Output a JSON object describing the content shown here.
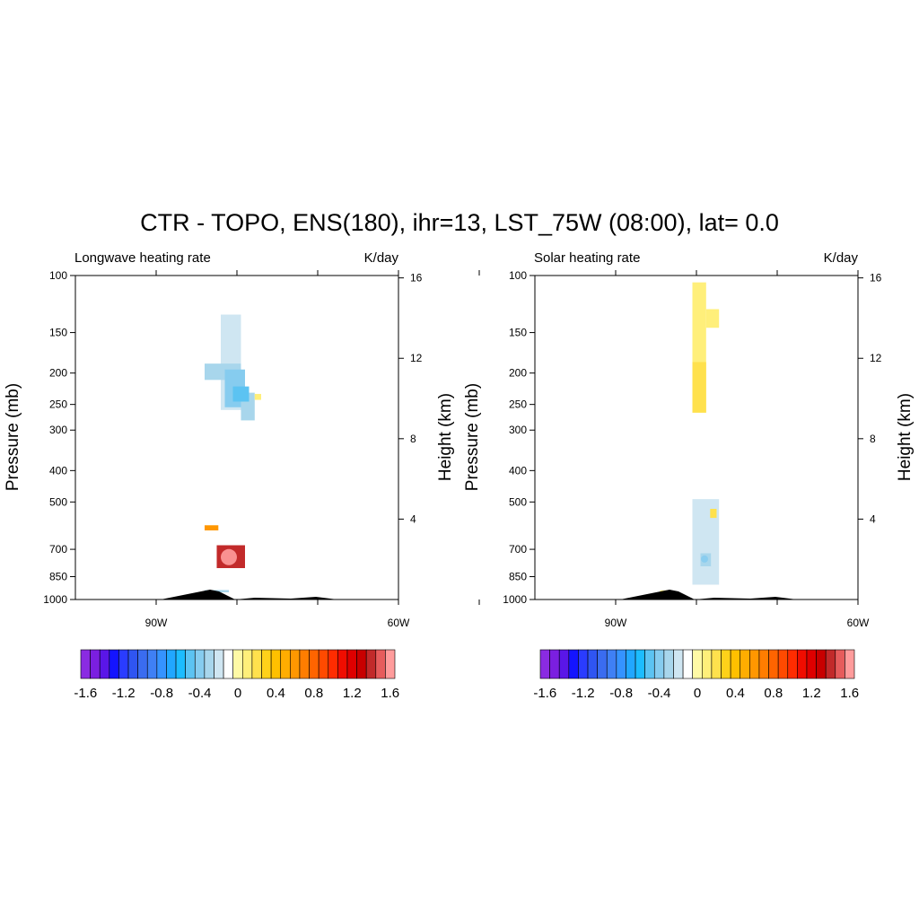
{
  "title": "CTR - TOPO, ENS(180), ihr=13, LST_75W (08:00), lat=  0.0",
  "colorbar": {
    "colors": [
      "#8a2be2",
      "#7b1fe0",
      "#5a16e8",
      "#1414ff",
      "#2a3cff",
      "#2f55f2",
      "#3a6cf0",
      "#3f80f5",
      "#3593ff",
      "#21a7ff",
      "#1cbcff",
      "#5cc3f2",
      "#86ccef",
      "#a8d6ec",
      "#cfe6f2",
      "#ffffff",
      "#fff9a6",
      "#ffef7a",
      "#ffe14d",
      "#ffd11a",
      "#ffc000",
      "#ffad00",
      "#ff9700",
      "#ff7d00",
      "#ff6400",
      "#ff4a00",
      "#ff2c00",
      "#f00d00",
      "#de0000",
      "#c80000",
      "#c22a2a",
      "#e65c5c",
      "#ff9c9c"
    ],
    "tick_labels": [
      "-1.6",
      "-1.2",
      "-0.8",
      "-0.4",
      "0",
      "0.4",
      "0.8",
      "1.2",
      "1.6"
    ]
  },
  "panels": [
    {
      "id": "longwave",
      "left_label": "Longwave heating rate",
      "right_label": "K/day",
      "y_axis_label": "Pressure (mb)",
      "y2_axis_label": "Height (km)"
    },
    {
      "id": "solar",
      "left_label": "Solar heating rate",
      "right_label": "K/day",
      "y_axis_label": "Pressure (mb)",
      "y2_axis_label": "Height (km)"
    }
  ],
  "chart_data": [
    {
      "type": "heatmap",
      "title": "Longwave heating rate",
      "units": "K/day",
      "x_axis": {
        "range_deg": [
          -100,
          -60
        ],
        "tick_labels": [
          "90W",
          "60W"
        ],
        "tick_values": [
          -90,
          -60
        ],
        "minor_ticks": [
          -90,
          -80,
          -70,
          -60,
          -50
        ]
      },
      "y_axis": {
        "scale": "log",
        "range": [
          1000,
          100
        ],
        "tick_values": [
          100,
          150,
          200,
          250,
          300,
          400,
          500,
          700,
          850,
          1000
        ],
        "tick_labels": [
          "100",
          "150",
          "200",
          "250",
          "300",
          "400",
          "500",
          "700",
          "850",
          "1000"
        ]
      },
      "y2_axis": {
        "tick_values": [
          16,
          12,
          8,
          4
        ],
        "tick_labels": [
          "16",
          "12",
          "8",
          "4"
        ]
      },
      "cells": [
        {
          "lon_from": -82.0,
          "lon_to": -79.5,
          "p_top": 132,
          "p_bottom": 260,
          "value": -0.2
        },
        {
          "lon_from": -84.0,
          "lon_to": -79.5,
          "p_top": 187,
          "p_bottom": 210,
          "value": -0.3
        },
        {
          "lon_from": -81.5,
          "lon_to": -79.0,
          "p_top": 195,
          "p_bottom": 255,
          "value": -0.45
        },
        {
          "lon_from": -79.5,
          "lon_to": -77.8,
          "p_top": 230,
          "p_bottom": 280,
          "value": -0.3
        },
        {
          "lon_from": -80.5,
          "lon_to": -78.5,
          "p_top": 220,
          "p_bottom": 245,
          "value": -0.55
        },
        {
          "lon_from": -77.8,
          "lon_to": -77.0,
          "p_top": 232,
          "p_bottom": 242,
          "value": 0.1
        },
        {
          "lon_from": -84.0,
          "lon_to": -82.3,
          "p_top": 590,
          "p_bottom": 612,
          "value": 0.6
        },
        {
          "lon_from": -82.5,
          "lon_to": -79.0,
          "p_top": 680,
          "p_bottom": 800,
          "value": 1.4
        },
        {
          "lon_from": -84.0,
          "lon_to": -81.0,
          "p_top": 935,
          "p_bottom": 950,
          "value": -0.3
        }
      ],
      "peak": {
        "lon": -81,
        "p": 740,
        "value": 1.6
      }
    },
    {
      "type": "heatmap",
      "title": "Solar heating rate",
      "units": "K/day",
      "x_axis": {
        "range_deg": [
          -100,
          -60
        ],
        "tick_labels": [
          "90W",
          "60W"
        ],
        "tick_values": [
          -90,
          -60
        ],
        "minor_ticks": [
          -90,
          -80,
          -70,
          -60,
          -50
        ]
      },
      "y_axis": {
        "scale": "log",
        "range": [
          1000,
          100
        ],
        "tick_values": [
          100,
          150,
          200,
          250,
          300,
          400,
          500,
          700,
          850,
          1000
        ],
        "tick_labels": [
          "100",
          "150",
          "200",
          "250",
          "300",
          "400",
          "500",
          "700",
          "850",
          "1000"
        ]
      },
      "y2_axis": {
        "tick_values": [
          16,
          12,
          8,
          4
        ],
        "tick_labels": [
          "16",
          "12",
          "8",
          "4"
        ]
      },
      "cells": [
        {
          "lon_from": -80.5,
          "lon_to": -78.8,
          "p_top": 105,
          "p_bottom": 265,
          "value": 0.1
        },
        {
          "lon_from": -78.8,
          "lon_to": -77.2,
          "p_top": 127,
          "p_bottom": 145,
          "value": 0.1
        },
        {
          "lon_from": -80.5,
          "lon_to": -78.8,
          "p_top": 185,
          "p_bottom": 265,
          "value": 0.2
        },
        {
          "lon_from": -80.5,
          "lon_to": -77.2,
          "p_top": 490,
          "p_bottom": 900,
          "value": -0.2
        },
        {
          "lon_from": -79.5,
          "lon_to": -78.2,
          "p_top": 720,
          "p_bottom": 790,
          "value": -0.3
        },
        {
          "lon_from": -78.3,
          "lon_to": -77.5,
          "p_top": 525,
          "p_bottom": 560,
          "value": 0.15
        },
        {
          "lon_from": -84.5,
          "lon_to": -83.3,
          "p_top": 937,
          "p_bottom": 945,
          "value": 0.1
        }
      ],
      "peak": {
        "lon": -79,
        "p": 750,
        "value": -0.4
      }
    }
  ]
}
